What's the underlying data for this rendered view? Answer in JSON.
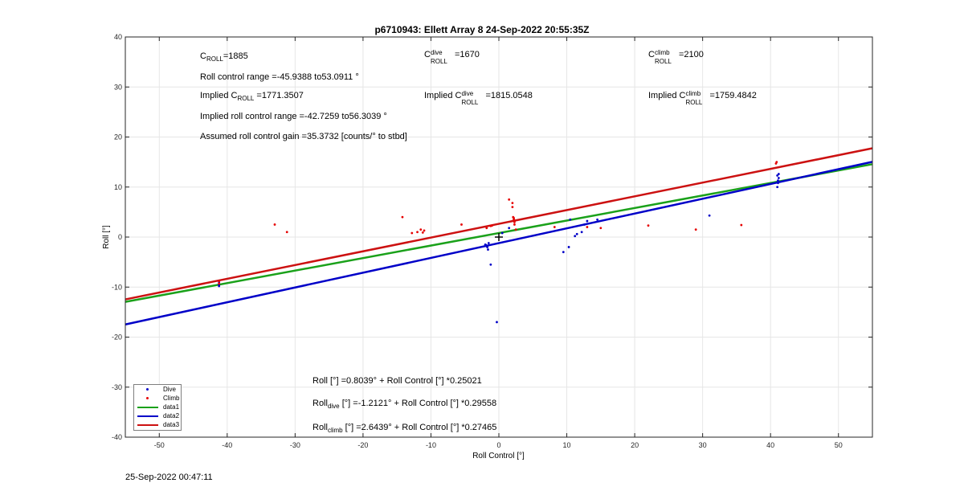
{
  "title": "p6710943: Ellett Array 8 24-Sep-2022 20:55:35Z",
  "footer_timestamp": "25-Sep-2022 00:47:11",
  "annotations": {
    "c_roll": {
      "base": "C",
      "sub": "ROLL",
      "value": "=1885"
    },
    "c_roll_dive": {
      "base": "C",
      "sup": "dive",
      "sub": "ROLL",
      "value": "=1670"
    },
    "c_roll_climb": {
      "base": "C",
      "sup": "climb",
      "sub": "ROLL",
      "value": "=2100"
    },
    "roll_control_range": "Roll control range =-45.9388 to53.0911 °",
    "implied_c_roll": {
      "prefix": "Implied C",
      "sub": "ROLL",
      "value": " =1771.3507"
    },
    "implied_c_roll_dive": {
      "prefix": "Implied C",
      "sup": "dive",
      "sub": "ROLL",
      "value": "=1815.0548"
    },
    "implied_c_roll_climb": {
      "prefix": "Implied C",
      "sup": "climb",
      "sub": "ROLL",
      "value": "=1759.4842"
    },
    "implied_range": "Implied roll control range =-42.7259 to56.3039 °",
    "assumed_gain": "Assumed roll control gain =35.3732 [counts/° to stbd]",
    "eq_all": {
      "prefix": "Roll [°] =0.8039° + Roll Control [°] *0.25021"
    },
    "eq_dive": {
      "prefix": "Roll",
      "sub": "dive",
      "rest": " [°] =-1.2121° + Roll Control [°] *0.29558"
    },
    "eq_climb": {
      "prefix": "Roll",
      "sub": "climb",
      "rest": " [°] =2.6439° + Roll Control [°] *0.27465"
    }
  },
  "chart_data": {
    "type": "scatter",
    "xlabel": "Roll Control [°]",
    "ylabel": "Roll [°]",
    "xlim": [
      -55,
      55
    ],
    "ylim": [
      -40,
      40
    ],
    "xticks": [
      -50,
      -40,
      -30,
      -20,
      -10,
      0,
      10,
      20,
      30,
      40,
      50
    ],
    "yticks": [
      -40,
      -30,
      -20,
      -10,
      0,
      10,
      20,
      30,
      40
    ],
    "grid": true,
    "legend_placement": "bottom-left",
    "center_marker": {
      "x": 0,
      "y": 0
    },
    "series": [
      {
        "name": "Dive",
        "kind": "points",
        "color": "#0000c8",
        "points": [
          [
            -41.2,
            -9.5
          ],
          [
            -41.2,
            -9.0
          ],
          [
            -41.2,
            -9.8
          ],
          [
            -2.0,
            -1.5
          ],
          [
            -1.8,
            -1.8
          ],
          [
            -1.7,
            -2.0
          ],
          [
            -1.5,
            -1.2
          ],
          [
            -1.9,
            -1.6
          ],
          [
            -1.6,
            -2.5
          ],
          [
            -1.2,
            -5.5
          ],
          [
            -0.3,
            -17.0
          ],
          [
            0.5,
            0.8
          ],
          [
            1.5,
            1.8
          ],
          [
            9.5,
            -3.0
          ],
          [
            10.3,
            -2.0
          ],
          [
            10.5,
            3.5
          ],
          [
            11.2,
            0.2
          ],
          [
            11.5,
            0.6
          ],
          [
            12.2,
            1.0
          ],
          [
            12.6,
            2.5
          ],
          [
            13.0,
            3.2
          ],
          [
            14.5,
            3.5
          ],
          [
            31.0,
            4.3
          ],
          [
            41.0,
            10.0
          ],
          [
            41.1,
            10.8
          ],
          [
            41.1,
            11.3
          ],
          [
            41.2,
            11.8
          ],
          [
            41.0,
            12.3
          ],
          [
            41.2,
            12.6
          ],
          [
            41.1,
            11.0
          ]
        ]
      },
      {
        "name": "Climb",
        "kind": "points",
        "color": "#e60000",
        "points": [
          [
            -41.2,
            -8.8
          ],
          [
            -41.2,
            -9.3
          ],
          [
            -33.0,
            2.5
          ],
          [
            -31.2,
            1.0
          ],
          [
            -14.2,
            4.0
          ],
          [
            -12.8,
            0.8
          ],
          [
            -12.0,
            1.0
          ],
          [
            -11.5,
            1.5
          ],
          [
            -11.2,
            0.9
          ],
          [
            -11.0,
            1.3
          ],
          [
            -5.5,
            2.5
          ],
          [
            -1.8,
            1.8
          ],
          [
            -1.2,
            2.2
          ],
          [
            -1.0,
            2.3
          ],
          [
            1.5,
            7.5
          ],
          [
            2.0,
            6.8
          ],
          [
            2.2,
            3.8
          ],
          [
            2.3,
            3.0
          ],
          [
            2.1,
            4.0
          ],
          [
            2.3,
            2.5
          ],
          [
            2.2,
            3.5
          ],
          [
            2.0,
            6.0
          ],
          [
            2.5,
            1.5
          ],
          [
            8.2,
            2.0
          ],
          [
            13.0,
            2.0
          ],
          [
            15.0,
            1.8
          ],
          [
            22.0,
            2.3
          ],
          [
            29.0,
            1.5
          ],
          [
            35.7,
            2.4
          ],
          [
            40.8,
            14.7
          ],
          [
            40.9,
            15.0
          ]
        ]
      },
      {
        "name": "data1",
        "kind": "line",
        "color": "#1aa11a",
        "intercept": 0.8039,
        "slope": 0.25021
      },
      {
        "name": "data2",
        "kind": "line",
        "color": "#0000c8",
        "intercept": -1.2121,
        "slope": 0.29558
      },
      {
        "name": "data3",
        "kind": "line",
        "color": "#cc1111",
        "intercept": 2.6439,
        "slope": 0.27465
      }
    ]
  }
}
